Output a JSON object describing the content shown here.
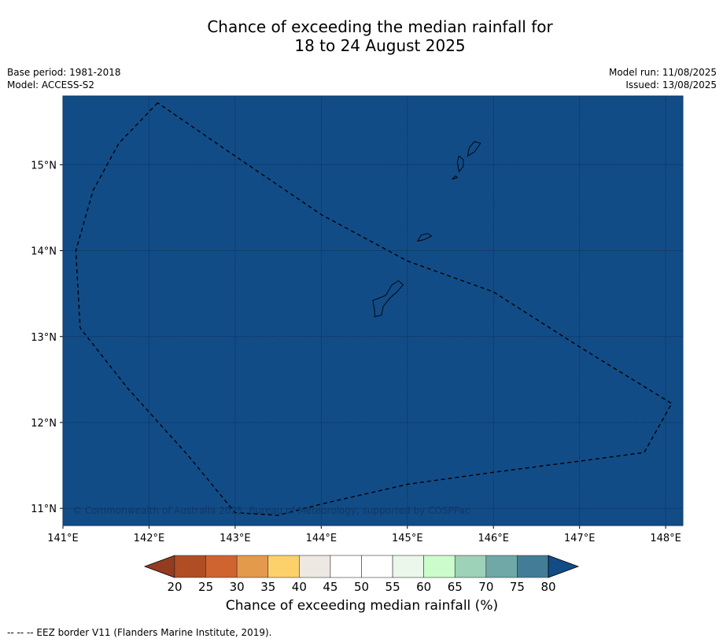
{
  "title": {
    "line1": "Chance of exceeding the median rainfall for",
    "line2": "18 to 24 August 2025"
  },
  "meta_left": {
    "base_period": "Base period: 1981-2018",
    "model": "Model: ACCESS-S2"
  },
  "meta_right": {
    "model_run": "Model run: 11/08/2025",
    "issued": "Issued: 13/08/2025"
  },
  "map": {
    "fill_color": "#124c87",
    "lon_range": [
      141,
      148.2
    ],
    "lat_range": [
      10.8,
      15.8
    ],
    "lon_ticks": [
      "141°E",
      "142°E",
      "143°E",
      "144°E",
      "145°E",
      "146°E",
      "147°E",
      "148°E"
    ],
    "lat_ticks": [
      "11°N",
      "12°N",
      "13°N",
      "14°N",
      "15°N"
    ],
    "copyright": "© Commonwealth of Australia 2025, Bureau of Meteorology, supported by COSPPac",
    "eez_border": [
      [
        142.1,
        15.72
      ],
      [
        141.65,
        15.25
      ],
      [
        141.35,
        14.7
      ],
      [
        141.15,
        14.0
      ],
      [
        141.2,
        13.1
      ],
      [
        141.75,
        12.4
      ],
      [
        142.45,
        11.62
      ],
      [
        143.0,
        10.95
      ],
      [
        143.5,
        10.92
      ],
      [
        144.0,
        11.05
      ],
      [
        145.0,
        11.28
      ],
      [
        146.0,
        11.42
      ],
      [
        147.0,
        11.55
      ],
      [
        147.75,
        11.65
      ],
      [
        148.07,
        12.22
      ],
      [
        147.0,
        12.88
      ],
      [
        146.0,
        13.52
      ],
      [
        145.0,
        13.88
      ],
      [
        144.0,
        14.42
      ],
      [
        143.0,
        15.1
      ],
      [
        142.1,
        15.72
      ]
    ],
    "islands": [
      [
        [
          144.62,
          13.23
        ],
        [
          144.7,
          13.25
        ],
        [
          144.72,
          13.35
        ],
        [
          144.8,
          13.45
        ],
        [
          144.88,
          13.52
        ],
        [
          144.95,
          13.6
        ],
        [
          144.9,
          13.65
        ],
        [
          144.82,
          13.6
        ],
        [
          144.75,
          13.48
        ],
        [
          144.68,
          13.45
        ],
        [
          144.6,
          13.42
        ],
        [
          144.62,
          13.3
        ],
        [
          144.62,
          13.23
        ]
      ],
      [
        [
          145.12,
          14.11
        ],
        [
          145.2,
          14.13
        ],
        [
          145.28,
          14.17
        ],
        [
          145.24,
          14.2
        ],
        [
          145.16,
          14.18
        ],
        [
          145.12,
          14.11
        ]
      ],
      [
        [
          145.6,
          14.92
        ],
        [
          145.65,
          14.98
        ],
        [
          145.65,
          15.06
        ],
        [
          145.6,
          15.1
        ],
        [
          145.58,
          15.03
        ],
        [
          145.6,
          14.92
        ]
      ],
      [
        [
          145.7,
          15.1
        ],
        [
          145.78,
          15.15
        ],
        [
          145.85,
          15.25
        ],
        [
          145.78,
          15.27
        ],
        [
          145.72,
          15.2
        ],
        [
          145.7,
          15.1
        ]
      ],
      [
        [
          145.52,
          14.83
        ],
        [
          145.58,
          14.85
        ],
        [
          145.56,
          14.87
        ],
        [
          145.52,
          14.83
        ]
      ]
    ]
  },
  "colorbar": {
    "ticks": [
      "20",
      "25",
      "30",
      "35",
      "40",
      "45",
      "50",
      "55",
      "60",
      "65",
      "70",
      "75",
      "80"
    ],
    "colors": [
      "#b14d24",
      "#cf6431",
      "#e49a4c",
      "#fcd16b",
      "#ede9e2",
      "#ffffff",
      "#ffffff",
      "#eaf7ea",
      "#ccfccc",
      "#9dd1b8",
      "#6fa8a7",
      "#437c96"
    ],
    "under_color": "#943c1f",
    "over_color": "#124c87",
    "label": "Chance of exceeding median rainfall (%)"
  },
  "footer": "--  --  -- EEZ border V11 (Flanders Marine Institute, 2019)."
}
